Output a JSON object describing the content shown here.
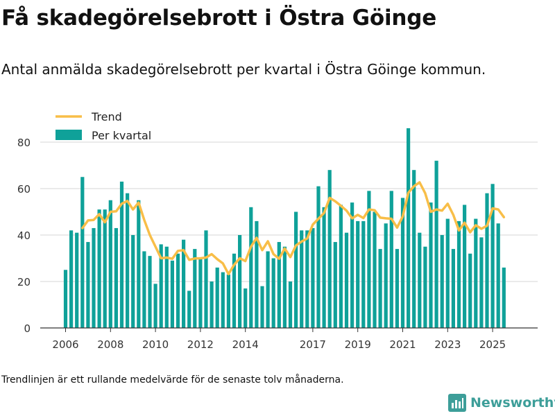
{
  "header": {
    "title": "Få skadegörelsebrott i Östra Göinge",
    "subtitle": "Antal anmälda skadegörelsebrott per kvartal i Östra Göinge kommun."
  },
  "footer": {
    "note": "Trendlinjen är ett rullande medelvärde för de senaste tolv månaderna.",
    "brand": "Newsworthy"
  },
  "colors": {
    "bar": "#0fa199",
    "trend": "#f8be48",
    "grid": "#d6d6d6",
    "brand": "#3d9e99"
  },
  "chart_data": {
    "type": "bar",
    "title": "Få skadegörelsebrott i Östra Göinge",
    "xlabel": "",
    "ylabel": "",
    "ylim": [
      0,
      90
    ],
    "yticks": [
      0,
      20,
      40,
      60,
      80
    ],
    "xticks": [
      {
        "label": "2006",
        "year": 2006
      },
      {
        "label": "2008",
        "year": 2008
      },
      {
        "label": "2010",
        "year": 2010
      },
      {
        "label": "2012",
        "year": 2012
      },
      {
        "label": "2014",
        "year": 2014
      },
      {
        "label": "2017",
        "year": 2017
      },
      {
        "label": "2019",
        "year": 2019
      },
      {
        "label": "2021",
        "year": 2021
      },
      {
        "label": "2023",
        "year": 2023
      },
      {
        "label": "2025",
        "year": 2025
      }
    ],
    "legend": {
      "position": "top-left",
      "trend_label": "Trend",
      "bars_label": "Per kvartal"
    },
    "start": {
      "year": 2006,
      "quarter": 1
    },
    "series": [
      {
        "name": "Per kvartal",
        "type": "bar",
        "values": [
          25,
          42,
          41,
          65,
          37,
          43,
          51,
          51,
          55,
          43,
          63,
          58,
          40,
          55,
          33,
          31,
          19,
          36,
          35,
          29,
          32,
          38,
          16,
          34,
          30,
          42,
          20,
          26,
          24,
          23,
          32,
          40,
          17,
          52,
          46,
          18,
          33,
          30,
          37,
          35,
          20,
          50,
          42,
          42,
          43,
          61,
          52,
          68,
          37,
          53,
          41,
          54,
          46,
          46,
          59,
          50,
          34,
          45,
          59,
          34,
          56,
          86,
          68,
          41,
          35,
          54,
          72,
          40,
          47,
          34,
          46,
          53,
          32,
          47,
          39,
          58,
          62,
          45,
          26
        ]
      },
      {
        "name": "Trend",
        "type": "line",
        "values": [
          null,
          null,
          null,
          43,
          46.3,
          46.5,
          49,
          45.5,
          50,
          50.2,
          53.5,
          54.7,
          51,
          54,
          46.5,
          40,
          35,
          30,
          30.3,
          29.8,
          33.2,
          33.5,
          29.3,
          29.9,
          30,
          30.3,
          31.8,
          29.6,
          27.8,
          23.2,
          27.2,
          30,
          28.8,
          35,
          38.8,
          33.5,
          37.3,
          31.8,
          29.8,
          34.2,
          30.5,
          35.5,
          37.2,
          38.5,
          44.5,
          47,
          49.5,
          56,
          54.5,
          52.6,
          50.5,
          47.2,
          48.7,
          47.3,
          51,
          50.7,
          47.5,
          47.2,
          47,
          43.2,
          48,
          58.2,
          61,
          62.7,
          58,
          50,
          51,
          50.5,
          53.5,
          48.7,
          42,
          45.3,
          41.2,
          44.2,
          42.7,
          44,
          51.5,
          51,
          47.7
        ]
      }
    ]
  }
}
